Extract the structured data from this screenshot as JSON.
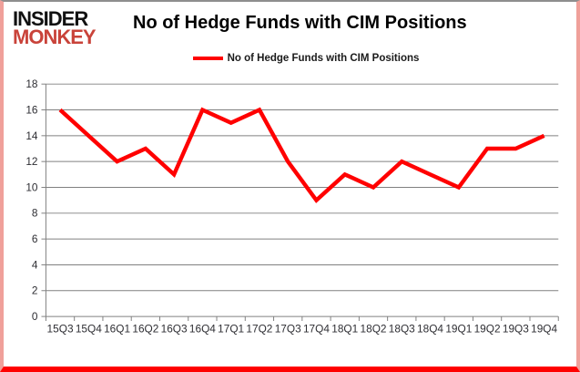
{
  "brand": {
    "line1": "INSIDER",
    "line2": "MONKEY"
  },
  "header": {
    "title": "No of Hedge Funds with CIM Positions"
  },
  "legend": {
    "label": "No of Hedge Funds with CIM Positions"
  },
  "colors": {
    "series": "#FF0000",
    "grid": "#808080",
    "axis": "#808080",
    "axis_text": "#2e2e33",
    "brand_black": "#111111",
    "brand_red": "#c9433a",
    "frame_bottom": "#ff0000"
  },
  "chart_data": {
    "type": "line",
    "title": "No of Hedge Funds with CIM Positions",
    "categories": [
      "15Q3",
      "15Q4",
      "16Q1",
      "16Q2",
      "16Q3",
      "16Q4",
      "17Q1",
      "17Q2",
      "17Q3",
      "17Q4",
      "18Q1",
      "18Q2",
      "18Q3",
      "18Q4",
      "19Q1",
      "19Q2",
      "19Q3",
      "19Q4"
    ],
    "series": [
      {
        "name": "No of Hedge Funds with CIM Positions",
        "values": [
          16,
          14,
          12,
          13,
          11,
          16,
          15,
          16,
          12,
          9,
          11,
          10,
          12,
          11,
          10,
          13,
          13,
          14
        ]
      }
    ],
    "xlabel": "",
    "ylabel": "",
    "ylim": [
      0,
      18
    ],
    "y_ticks": [
      0,
      2,
      4,
      6,
      8,
      10,
      12,
      14,
      16,
      18
    ],
    "grid": true,
    "legend_position": "top"
  }
}
